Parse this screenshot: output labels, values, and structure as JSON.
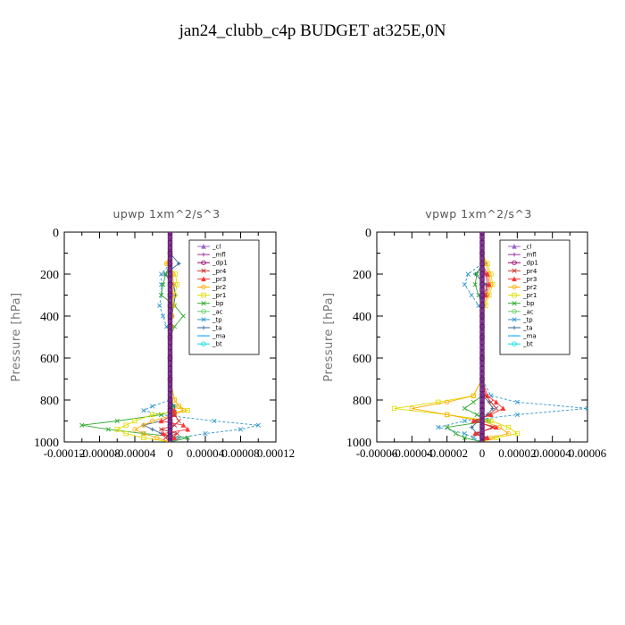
{
  "figure": {
    "title": "jan24_clubb_c4p  BUDGET at325E,0N",
    "ylabel": "Pressure [hPa]"
  },
  "chart_data": [
    {
      "type": "line",
      "title": "upwp   1xm^2/s^3",
      "ylabel": "Pressure [hPa]",
      "ylim": [
        1000,
        0
      ],
      "xlim": [
        -0.00012,
        0.00012
      ],
      "yticks": [
        "0",
        "200",
        "400",
        "600",
        "800",
        "1000"
      ],
      "xticks": [
        "-0.00012",
        "-0.00008",
        "-0.00004",
        "0",
        "0.00004",
        "0.00008",
        "0.00012"
      ],
      "legend_position": "top-right",
      "legend": [
        "_cl",
        "_mfl",
        "_dp1",
        "_pr4",
        "_pr3",
        "_pr2",
        "_pr1",
        "_bp",
        "_ac",
        "_tp",
        "_ta",
        "_ma",
        "_bt"
      ],
      "pressure": [
        0,
        100,
        150,
        200,
        250,
        300,
        350,
        400,
        450,
        500,
        600,
        700,
        800,
        830,
        850,
        870,
        900,
        920,
        940,
        960,
        980,
        1000
      ],
      "series": [
        {
          "name": "_cl",
          "color": "#9966cc",
          "values": [
            0,
            0,
            0,
            0,
            0,
            0,
            0,
            0,
            0,
            0,
            0,
            0,
            0,
            0,
            0,
            0,
            0,
            0,
            0,
            0,
            0,
            0
          ]
        },
        {
          "name": "_mfl",
          "color": "#993399",
          "values": [
            0,
            0,
            0,
            0,
            0,
            0,
            0,
            0,
            0,
            0,
            0,
            0,
            0,
            0,
            0,
            0,
            0,
            0,
            0,
            0,
            0,
            0
          ]
        },
        {
          "name": "_dp1",
          "color": "#990066",
          "values": [
            0,
            0,
            0,
            0,
            0,
            0,
            0,
            0,
            0,
            0,
            0,
            0,
            0,
            0,
            0,
            0,
            0,
            0,
            0,
            0,
            0,
            0
          ]
        },
        {
          "name": "_pr4",
          "color": "#cc3333",
          "values": [
            0,
            0,
            0,
            0,
            0,
            0,
            0,
            0,
            0,
            0,
            0,
            0,
            0,
            0,
            0,
            5e-06,
            1e-05,
            5e-06,
            -1e-05,
            8e-06,
            -5e-06,
            0
          ]
        },
        {
          "name": "_pr3",
          "color": "#ff3333",
          "values": [
            0,
            0,
            0,
            0,
            0,
            0,
            0,
            0,
            0,
            0,
            0,
            0,
            0,
            0,
            5e-06,
            5e-06,
            -1e-05,
            1.5e-05,
            2e-05,
            -8e-06,
            5e-06,
            0
          ]
        },
        {
          "name": "_pr2",
          "color": "#ffaa00",
          "values": [
            0,
            0,
            -4e-06,
            3e-06,
            4e-06,
            3e-06,
            2e-06,
            2e-06,
            1e-06,
            0,
            0,
            0,
            5e-06,
            1e-05,
            1.5e-05,
            5e-06,
            -2e-05,
            -3e-05,
            -4e-05,
            -3e-05,
            -1.5e-05,
            0
          ]
        },
        {
          "name": "_pr1",
          "color": "#dddd00",
          "values": [
            0,
            0,
            -3e-06,
            6e-06,
            8e-06,
            5e-06,
            3e-06,
            2e-06,
            1e-06,
            0,
            0,
            0,
            5e-06,
            1e-05,
            2e-05,
            -2e-05,
            -4e-05,
            -5e-05,
            -6e-05,
            -5e-05,
            -3e-05,
            0
          ]
        },
        {
          "name": "_bp",
          "color": "#33aa33",
          "values": [
            0,
            0,
            0,
            -5e-06,
            -8e-06,
            -1e-05,
            5e-06,
            1.5e-05,
            5e-06,
            0,
            0,
            0,
            0,
            4e-06,
            3e-06,
            -1e-05,
            -6e-05,
            -0.0001,
            -7e-05,
            -3e-05,
            2e-05,
            0
          ]
        },
        {
          "name": "_ac",
          "color": "#66cc66",
          "values": [
            0,
            0,
            0,
            0,
            0,
            0,
            0,
            0,
            0,
            0,
            0,
            0,
            0,
            0,
            0,
            0,
            0,
            0,
            0,
            0,
            0,
            0
          ]
        },
        {
          "name": "_tp",
          "color": "#3399cc",
          "values": [
            0,
            0,
            0,
            -1e-05,
            -1e-05,
            -1e-05,
            -1.2e-05,
            -8e-06,
            -4e-06,
            0,
            0,
            0,
            0,
            -2e-05,
            -3e-05,
            -1e-05,
            5e-05,
            0.0001,
            8e-05,
            4e-05,
            1e-05,
            0
          ]
        },
        {
          "name": "_ta",
          "color": "#336699",
          "values": [
            0,
            0,
            1e-05,
            -6e-06,
            4e-06,
            6e-06,
            4e-06,
            2e-06,
            1e-06,
            0,
            0,
            0,
            0,
            5e-06,
            5e-06,
            5e-06,
            -1e-05,
            -3e-05,
            -2e-05,
            -1e-05,
            5e-06,
            0
          ]
        },
        {
          "name": "_ma",
          "color": "#0099ff",
          "values": [
            0,
            0,
            0,
            0,
            0,
            0,
            0,
            0,
            0,
            0,
            0,
            0,
            0,
            0,
            0,
            0,
            0,
            0,
            0,
            0,
            0,
            0
          ]
        },
        {
          "name": "_bt",
          "color": "#00dddd",
          "values": [
            0,
            0,
            0,
            0,
            0,
            0,
            0,
            0,
            0,
            0,
            0,
            0,
            0,
            0,
            0,
            0,
            0,
            0,
            0,
            0,
            0,
            0
          ]
        }
      ]
    },
    {
      "type": "line",
      "title": "vpwp   1xm^2/s^3",
      "ylabel": "Pressure [hPa]",
      "ylim": [
        1000,
        0
      ],
      "xlim": [
        -6e-05,
        6e-05
      ],
      "yticks": [
        "0",
        "200",
        "400",
        "600",
        "800",
        "1000"
      ],
      "xticks": [
        "-0.00006",
        "-0.00004",
        "-0.00002",
        "0",
        "0.00002",
        "0.00004",
        "0.00006"
      ],
      "legend_position": "top-right",
      "legend": [
        "_cl",
        "_mfl",
        "_dp1",
        "_pr4",
        "_pr3",
        "_pr2",
        "_pr1",
        "_bp",
        "_ac",
        "_tp",
        "_ta",
        "_ma",
        "_bt"
      ],
      "pressure": [
        0,
        100,
        150,
        200,
        250,
        300,
        350,
        400,
        450,
        500,
        600,
        700,
        780,
        810,
        840,
        870,
        900,
        930,
        960,
        980,
        1000
      ],
      "series": [
        {
          "name": "_cl",
          "color": "#9966cc",
          "values": [
            0,
            0,
            0,
            0,
            0,
            0,
            0,
            0,
            0,
            0,
            0,
            0,
            0,
            0,
            0,
            0,
            0,
            0,
            0,
            0,
            0
          ]
        },
        {
          "name": "_mfl",
          "color": "#993399",
          "values": [
            0,
            0,
            0,
            0,
            0,
            0,
            0,
            0,
            0,
            0,
            0,
            0,
            0,
            0,
            0,
            0,
            0,
            0,
            0,
            0,
            0
          ]
        },
        {
          "name": "_dp1",
          "color": "#990066",
          "values": [
            0,
            0,
            0,
            0,
            0,
            0,
            0,
            0,
            0,
            0,
            0,
            0,
            0,
            0,
            0,
            0,
            0,
            0,
            0,
            0,
            0
          ]
        },
        {
          "name": "_pr4",
          "color": "#cc3333",
          "values": [
            0,
            0,
            0,
            2e-06,
            3e-06,
            1e-06,
            0,
            0,
            0,
            0,
            0,
            0,
            2e-06,
            5e-06,
            8e-06,
            4e-06,
            -4e-06,
            6e-06,
            -3e-06,
            2e-06,
            0
          ]
        },
        {
          "name": "_pr3",
          "color": "#ff3333",
          "values": [
            0,
            0,
            0,
            3e-06,
            4e-06,
            2e-06,
            0,
            0,
            0,
            0,
            0,
            0,
            3e-06,
            8e-06,
            1.2e-05,
            5e-06,
            -5e-06,
            8e-06,
            -4e-06,
            3e-06,
            0
          ]
        },
        {
          "name": "_pr2",
          "color": "#ffaa00",
          "values": [
            0,
            0,
            2e-06,
            4e-06,
            5e-06,
            3e-06,
            1e-06,
            0,
            0,
            0,
            0,
            0,
            -5e-06,
            -2e-05,
            -4e-05,
            -2e-05,
            0,
            1e-05,
            1.5e-05,
            5e-06,
            0
          ]
        },
        {
          "name": "_pr1",
          "color": "#dddd00",
          "values": [
            0,
            0,
            3e-06,
            5e-06,
            6e-06,
            4e-06,
            2e-06,
            0,
            0,
            0,
            0,
            0,
            -5e-06,
            -2.5e-05,
            -5e-05,
            -2e-05,
            5e-06,
            1.5e-05,
            2e-05,
            8e-06,
            0
          ]
        },
        {
          "name": "_bp",
          "color": "#33aa33",
          "values": [
            0,
            0,
            0,
            -3e-06,
            -4e-06,
            -2e-06,
            0,
            0,
            0,
            0,
            0,
            0,
            0,
            -5e-06,
            -1e-05,
            -3e-06,
            4e-06,
            -2e-05,
            -1.5e-05,
            -1e-05,
            0
          ]
        },
        {
          "name": "_ac",
          "color": "#66cc66",
          "values": [
            0,
            0,
            0,
            0,
            0,
            0,
            0,
            0,
            0,
            0,
            0,
            0,
            0,
            0,
            0,
            0,
            0,
            0,
            0,
            0,
            0
          ]
        },
        {
          "name": "_tp",
          "color": "#3399cc",
          "values": [
            0,
            0,
            0,
            -8e-06,
            -1e-05,
            -6e-06,
            -2e-06,
            0,
            0,
            0,
            0,
            0,
            5e-06,
            2e-05,
            6e-05,
            2e-05,
            -1e-05,
            -2.5e-05,
            -1e-05,
            -5e-06,
            0
          ]
        },
        {
          "name": "_ta",
          "color": "#336699",
          "values": [
            0,
            0,
            2e-06,
            -4e-06,
            2e-06,
            3e-06,
            1e-06,
            0,
            0,
            0,
            0,
            0,
            0,
            4e-06,
            6e-06,
            3e-06,
            -2e-06,
            -6e-06,
            -3e-06,
            0,
            0
          ]
        },
        {
          "name": "_ma",
          "color": "#0099ff",
          "values": [
            0,
            0,
            0,
            0,
            0,
            0,
            0,
            0,
            0,
            0,
            0,
            0,
            0,
            0,
            0,
            0,
            0,
            0,
            0,
            0,
            0
          ]
        },
        {
          "name": "_bt",
          "color": "#00dddd",
          "values": [
            0,
            0,
            0,
            0,
            0,
            0,
            0,
            0,
            0,
            0,
            0,
            0,
            0,
            0,
            0,
            0,
            0,
            0,
            0,
            0,
            0
          ]
        }
      ]
    }
  ]
}
